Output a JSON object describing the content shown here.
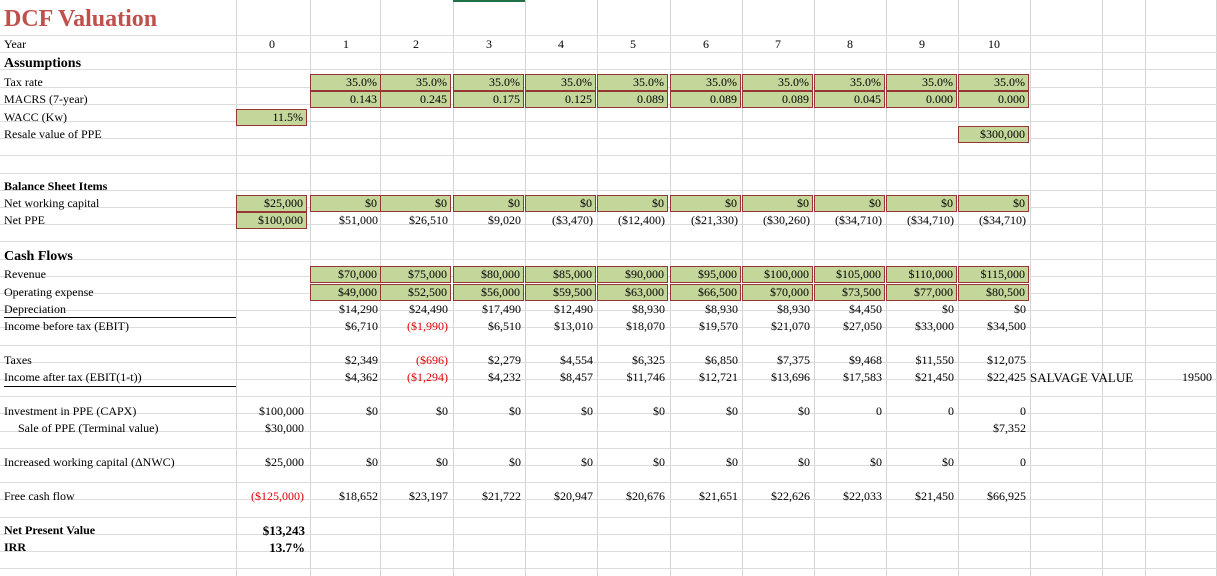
{
  "title": "DCF Valuation",
  "year_label": "Year",
  "years": [
    "0",
    "1",
    "2",
    "3",
    "4",
    "5",
    "6",
    "7",
    "8",
    "9",
    "10"
  ],
  "sections": {
    "assumptions": "Assumptions",
    "balance_sheet": "Balance Sheet Items",
    "cash_flows": "Cash Flows"
  },
  "rows": [
    {
      "key": "tax",
      "label": "Tax rate",
      "top": 74,
      "cells": [
        "",
        "35.0%",
        "35.0%",
        "35.0%",
        "35.0%",
        "35.0%",
        "35.0%",
        "35.0%",
        "35.0%",
        "35.0%",
        "35.0%"
      ],
      "green": [
        1,
        2,
        3,
        4,
        5,
        6,
        7,
        8,
        9,
        10
      ]
    },
    {
      "key": "macrs",
      "label": "MACRS (7-year)",
      "top": 91,
      "cells": [
        "",
        "0.143",
        "0.245",
        "0.175",
        "0.125",
        "0.089",
        "0.089",
        "0.089",
        "0.045",
        "0.000",
        "0.000"
      ],
      "green": [
        1,
        2,
        3,
        4,
        5,
        6,
        7,
        8,
        9,
        10
      ]
    },
    {
      "key": "wacc",
      "label": "WACC (Kw)",
      "top": 109,
      "cells": [
        "11.5%",
        "",
        "",
        "",
        "",
        "",
        "",
        "",
        "",
        "",
        ""
      ],
      "green": [
        0
      ]
    },
    {
      "key": "resale",
      "label": "Resale value of PPE",
      "top": 126,
      "cells": [
        "",
        "",
        "",
        "",
        "",
        "",
        "",
        "",
        "",
        "",
        "$300,000"
      ],
      "green": [
        10
      ]
    },
    {
      "key": "nwc",
      "label": "Net working capital",
      "top": 195,
      "cells": [
        "$25,000",
        "$0",
        "$0",
        "$0",
        "$0",
        "$0",
        "$0",
        "$0",
        "$0",
        "$0",
        "$0"
      ],
      "green": [
        0,
        1,
        2,
        3,
        4,
        5,
        6,
        7,
        8,
        9,
        10
      ]
    },
    {
      "key": "netppe",
      "label": "Net PPE",
      "top": 212,
      "cells": [
        "$100,000",
        "$51,000",
        "$26,510",
        "$9,020",
        "($3,470)",
        "($12,400)",
        "($21,330)",
        "($30,260)",
        "($34,710)",
        "($34,710)",
        "($34,710)"
      ],
      "green": [
        0
      ]
    },
    {
      "key": "revenue",
      "label": "Revenue",
      "top": 266,
      "cells": [
        "",
        "$70,000",
        "$75,000",
        "$80,000",
        "$85,000",
        "$90,000",
        "$95,000",
        "$100,000",
        "$105,000",
        "$110,000",
        "$115,000"
      ],
      "green": [
        1,
        2,
        3,
        4,
        5,
        6,
        7,
        8,
        9,
        10
      ]
    },
    {
      "key": "opex",
      "label": "Operating expense",
      "top": 284,
      "cells": [
        "",
        "$49,000",
        "$52,500",
        "$56,000",
        "$59,500",
        "$63,000",
        "$66,500",
        "$70,000",
        "$73,500",
        "$77,000",
        "$80,500"
      ],
      "green": [
        1,
        2,
        3,
        4,
        5,
        6,
        7,
        8,
        9,
        10
      ]
    },
    {
      "key": "dep",
      "label": "Depreciation",
      "top": 301,
      "cells": [
        "",
        "$14,290",
        "$24,490",
        "$17,490",
        "$12,490",
        "$8,930",
        "$8,930",
        "$8,930",
        "$4,450",
        "$0",
        "$0"
      ],
      "green": []
    },
    {
      "key": "ebit",
      "label": "Income before tax (EBIT)",
      "top": 318,
      "cells": [
        "",
        "$6,710",
        "($1,990)",
        "$6,510",
        "$13,010",
        "$18,070",
        "$19,570",
        "$21,070",
        "$27,050",
        "$33,000",
        "$34,500"
      ],
      "green": [],
      "red": [
        2
      ]
    },
    {
      "key": "taxes",
      "label": "Taxes",
      "top": 352,
      "cells": [
        "",
        "$2,349",
        "($696)",
        "$2,279",
        "$4,554",
        "$6,325",
        "$6,850",
        "$7,375",
        "$9,468",
        "$11,550",
        "$12,075"
      ],
      "green": [],
      "red": [
        2
      ]
    },
    {
      "key": "iat",
      "label": "Income after tax (EBIT(1-t))",
      "top": 369,
      "cells": [
        "",
        "$4,362",
        "($1,294)",
        "$4,232",
        "$8,457",
        "$11,746",
        "$12,721",
        "$13,696",
        "$17,583",
        "$21,450",
        "$22,425"
      ],
      "green": [],
      "red": [
        2
      ]
    },
    {
      "key": "capx",
      "label": "Investment in PPE (CAPX)",
      "top": 403,
      "cells": [
        "$100,000",
        "$0",
        "$0",
        "$0",
        "$0",
        "$0",
        "$0",
        "$0",
        "0",
        "0",
        "0"
      ],
      "green": []
    },
    {
      "key": "sale",
      "label": "Sale of PPE (Terminal value)",
      "top": 420,
      "indent": true,
      "cells": [
        "$30,000",
        "",
        "",
        "",
        "",
        "",
        "",
        "",
        "",
        "",
        "$7,352"
      ],
      "green": []
    },
    {
      "key": "dnwc",
      "label": "Increased working capital (ΔNWC)",
      "top": 454,
      "cells": [
        "$25,000",
        "$0",
        "$0",
        "$0",
        "$0",
        "$0",
        "$0",
        "$0",
        "$0",
        "$0",
        "0"
      ],
      "green": []
    },
    {
      "key": "fcf",
      "label": "Free cash flow",
      "top": 488,
      "cells": [
        "($125,000)",
        "$18,652",
        "$23,197",
        "$21,722",
        "$20,947",
        "$20,676",
        "$21,651",
        "$22,626",
        "$22,033",
        "$21,450",
        "$66,925"
      ],
      "green": [],
      "red": [
        0
      ]
    }
  ],
  "salvage": {
    "label": "SALVAGE VALUE",
    "value": "19500"
  },
  "summary": {
    "npv_label": "Net Present Value",
    "npv_value": "$13,243",
    "irr_label": "IRR",
    "irr_value": "13.7%"
  },
  "colors": {
    "title": "#c0504d",
    "green_fill": "#c4d79b",
    "green_border": "#963634",
    "negative": "#e00000"
  }
}
